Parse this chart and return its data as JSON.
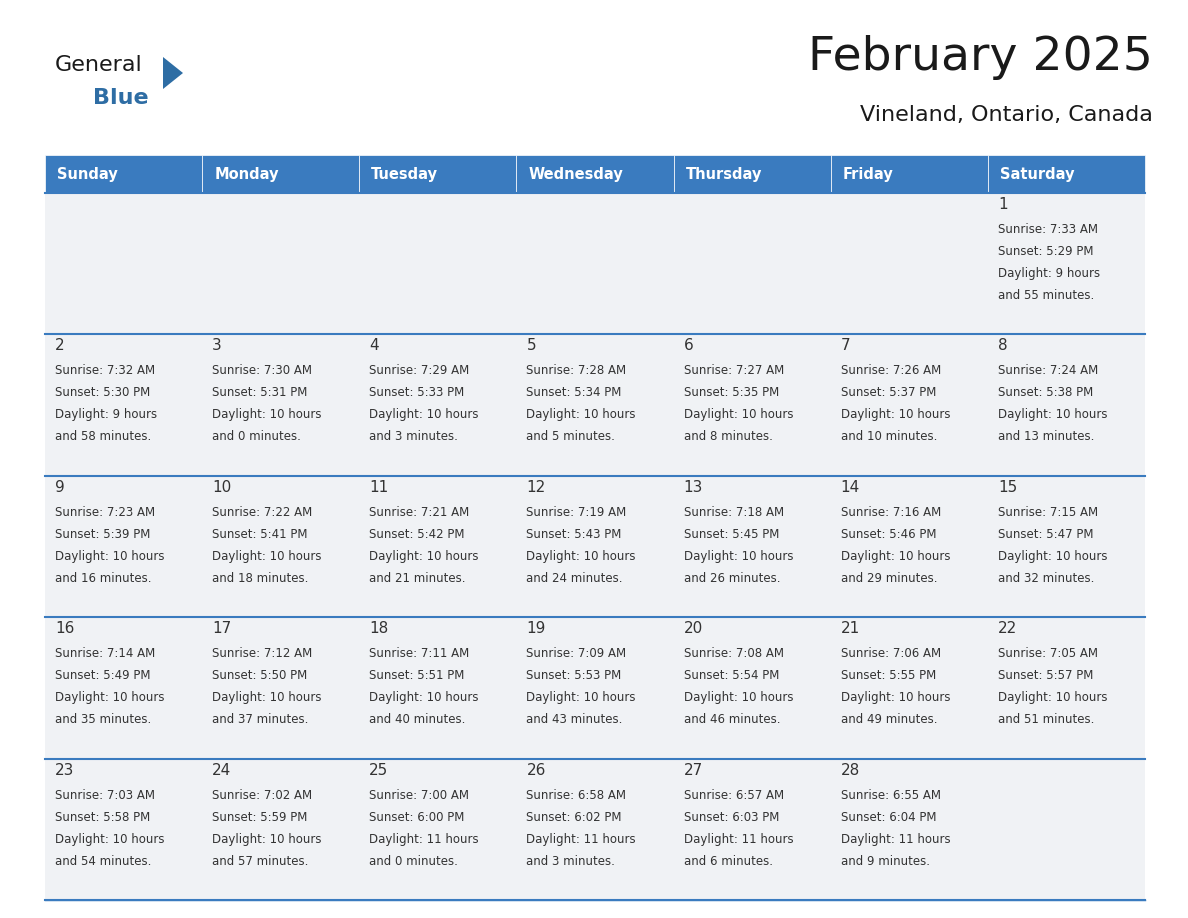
{
  "title": "February 2025",
  "subtitle": "Vineland, Ontario, Canada",
  "header_bg": "#3a7bbf",
  "header_text_color": "#FFFFFF",
  "cell_bg_light": "#f0f2f5",
  "cell_bg_white": "#FFFFFF",
  "border_color": "#3a7bbf",
  "day_headers": [
    "Sunday",
    "Monday",
    "Tuesday",
    "Wednesday",
    "Thursday",
    "Friday",
    "Saturday"
  ],
  "title_color": "#1a1a1a",
  "subtitle_color": "#1a1a1a",
  "day_num_color": "#333333",
  "cell_text_color": "#333333",
  "logo_general_color": "#1a1a1a",
  "logo_blue_color": "#2E6DA4",
  "logo_triangle_color": "#2E6DA4",
  "calendar": [
    [
      null,
      null,
      null,
      null,
      null,
      null,
      {
        "day": 1,
        "rise": "7:33 AM",
        "set": "5:29 PM",
        "light": "9 hours\nand 55 minutes."
      }
    ],
    [
      {
        "day": 2,
        "rise": "7:32 AM",
        "set": "5:30 PM",
        "light": "9 hours\nand 58 minutes."
      },
      {
        "day": 3,
        "rise": "7:30 AM",
        "set": "5:31 PM",
        "light": "10 hours\nand 0 minutes."
      },
      {
        "day": 4,
        "rise": "7:29 AM",
        "set": "5:33 PM",
        "light": "10 hours\nand 3 minutes."
      },
      {
        "day": 5,
        "rise": "7:28 AM",
        "set": "5:34 PM",
        "light": "10 hours\nand 5 minutes."
      },
      {
        "day": 6,
        "rise": "7:27 AM",
        "set": "5:35 PM",
        "light": "10 hours\nand 8 minutes."
      },
      {
        "day": 7,
        "rise": "7:26 AM",
        "set": "5:37 PM",
        "light": "10 hours\nand 10 minutes."
      },
      {
        "day": 8,
        "rise": "7:24 AM",
        "set": "5:38 PM",
        "light": "10 hours\nand 13 minutes."
      }
    ],
    [
      {
        "day": 9,
        "rise": "7:23 AM",
        "set": "5:39 PM",
        "light": "10 hours\nand 16 minutes."
      },
      {
        "day": 10,
        "rise": "7:22 AM",
        "set": "5:41 PM",
        "light": "10 hours\nand 18 minutes."
      },
      {
        "day": 11,
        "rise": "7:21 AM",
        "set": "5:42 PM",
        "light": "10 hours\nand 21 minutes."
      },
      {
        "day": 12,
        "rise": "7:19 AM",
        "set": "5:43 PM",
        "light": "10 hours\nand 24 minutes."
      },
      {
        "day": 13,
        "rise": "7:18 AM",
        "set": "5:45 PM",
        "light": "10 hours\nand 26 minutes."
      },
      {
        "day": 14,
        "rise": "7:16 AM",
        "set": "5:46 PM",
        "light": "10 hours\nand 29 minutes."
      },
      {
        "day": 15,
        "rise": "7:15 AM",
        "set": "5:47 PM",
        "light": "10 hours\nand 32 minutes."
      }
    ],
    [
      {
        "day": 16,
        "rise": "7:14 AM",
        "set": "5:49 PM",
        "light": "10 hours\nand 35 minutes."
      },
      {
        "day": 17,
        "rise": "7:12 AM",
        "set": "5:50 PM",
        "light": "10 hours\nand 37 minutes."
      },
      {
        "day": 18,
        "rise": "7:11 AM",
        "set": "5:51 PM",
        "light": "10 hours\nand 40 minutes."
      },
      {
        "day": 19,
        "rise": "7:09 AM",
        "set": "5:53 PM",
        "light": "10 hours\nand 43 minutes."
      },
      {
        "day": 20,
        "rise": "7:08 AM",
        "set": "5:54 PM",
        "light": "10 hours\nand 46 minutes."
      },
      {
        "day": 21,
        "rise": "7:06 AM",
        "set": "5:55 PM",
        "light": "10 hours\nand 49 minutes."
      },
      {
        "day": 22,
        "rise": "7:05 AM",
        "set": "5:57 PM",
        "light": "10 hours\nand 51 minutes."
      }
    ],
    [
      {
        "day": 23,
        "rise": "7:03 AM",
        "set": "5:58 PM",
        "light": "10 hours\nand 54 minutes."
      },
      {
        "day": 24,
        "rise": "7:02 AM",
        "set": "5:59 PM",
        "light": "10 hours\nand 57 minutes."
      },
      {
        "day": 25,
        "rise": "7:00 AM",
        "set": "6:00 PM",
        "light": "11 hours\nand 0 minutes."
      },
      {
        "day": 26,
        "rise": "6:58 AM",
        "set": "6:02 PM",
        "light": "11 hours\nand 3 minutes."
      },
      {
        "day": 27,
        "rise": "6:57 AM",
        "set": "6:03 PM",
        "light": "11 hours\nand 6 minutes."
      },
      {
        "day": 28,
        "rise": "6:55 AM",
        "set": "6:04 PM",
        "light": "11 hours\nand 9 minutes."
      },
      null
    ]
  ]
}
